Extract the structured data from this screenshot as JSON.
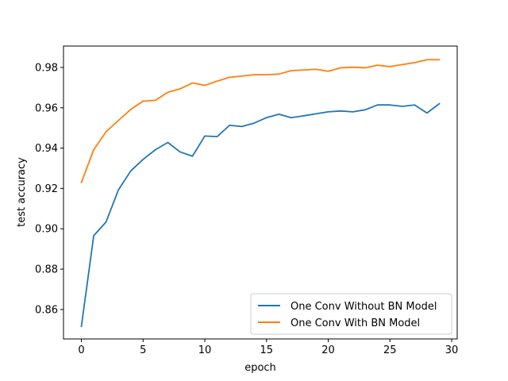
{
  "chart_data": {
    "type": "line",
    "xlabel": "epoch",
    "ylabel": "test accuracy",
    "xlim": [
      -1.45,
      30.45
    ],
    "ylim": [
      0.8454,
      0.9906
    ],
    "x_ticks": [
      0,
      5,
      10,
      15,
      20,
      25,
      30
    ],
    "y_ticks": [
      0.86,
      0.88,
      0.9,
      0.92,
      0.94,
      0.96,
      0.98
    ],
    "y_tick_labels": [
      "0.86",
      "0.88",
      "0.90",
      "0.92",
      "0.94",
      "0.96",
      "0.98"
    ],
    "grid": false,
    "legend_position": "lower-right",
    "x": [
      0,
      1,
      2,
      3,
      4,
      5,
      6,
      7,
      8,
      9,
      10,
      11,
      12,
      13,
      14,
      15,
      16,
      17,
      18,
      19,
      20,
      21,
      22,
      23,
      24,
      25,
      26,
      27,
      28,
      29
    ],
    "series": [
      {
        "name": "One Conv Without BN Model",
        "color": "#1f77b4",
        "values": [
          0.8517,
          0.8966,
          0.9034,
          0.9193,
          0.9287,
          0.9344,
          0.9392,
          0.9428,
          0.9381,
          0.936,
          0.946,
          0.9457,
          0.9513,
          0.9507,
          0.9524,
          0.9551,
          0.9568,
          0.9551,
          0.956,
          0.957,
          0.958,
          0.9584,
          0.958,
          0.959,
          0.9614,
          0.9614,
          0.9607,
          0.9614,
          0.9574,
          0.962
        ]
      },
      {
        "name": "One Conv With BN Model",
        "color": "#ff7f0e",
        "values": [
          0.923,
          0.9392,
          0.9481,
          0.9537,
          0.9592,
          0.9633,
          0.9637,
          0.9677,
          0.9694,
          0.9723,
          0.9711,
          0.9732,
          0.9751,
          0.9757,
          0.9764,
          0.9764,
          0.9767,
          0.9784,
          0.9787,
          0.9791,
          0.9781,
          0.9798,
          0.9801,
          0.9798,
          0.9811,
          0.9804,
          0.9814,
          0.9824,
          0.9838,
          0.9838
        ]
      }
    ]
  }
}
